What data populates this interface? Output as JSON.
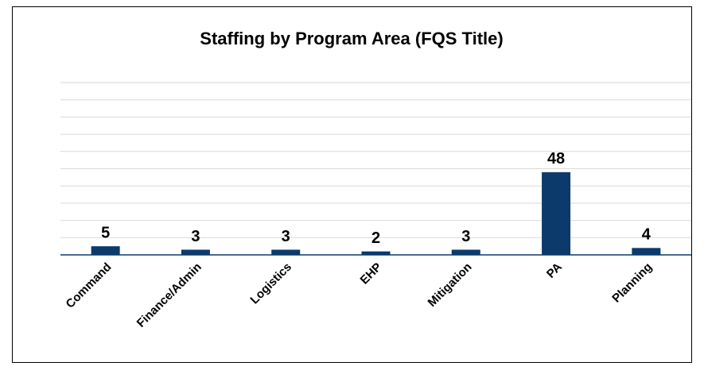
{
  "chart_data": {
    "type": "bar",
    "title": "Staffing by Program Area (FQS Title)",
    "categories": [
      "Command",
      "Finance/Admin",
      "Logistics",
      "EHP",
      "Mitigation",
      "PA",
      "Planning"
    ],
    "values": [
      5,
      3,
      3,
      2,
      3,
      48,
      4
    ],
    "color": "#0b3a6b",
    "ylim": [
      0,
      100
    ],
    "yticks": [
      0,
      10,
      20,
      30,
      40,
      50,
      60,
      70,
      80,
      90,
      100
    ],
    "grid": true
  }
}
